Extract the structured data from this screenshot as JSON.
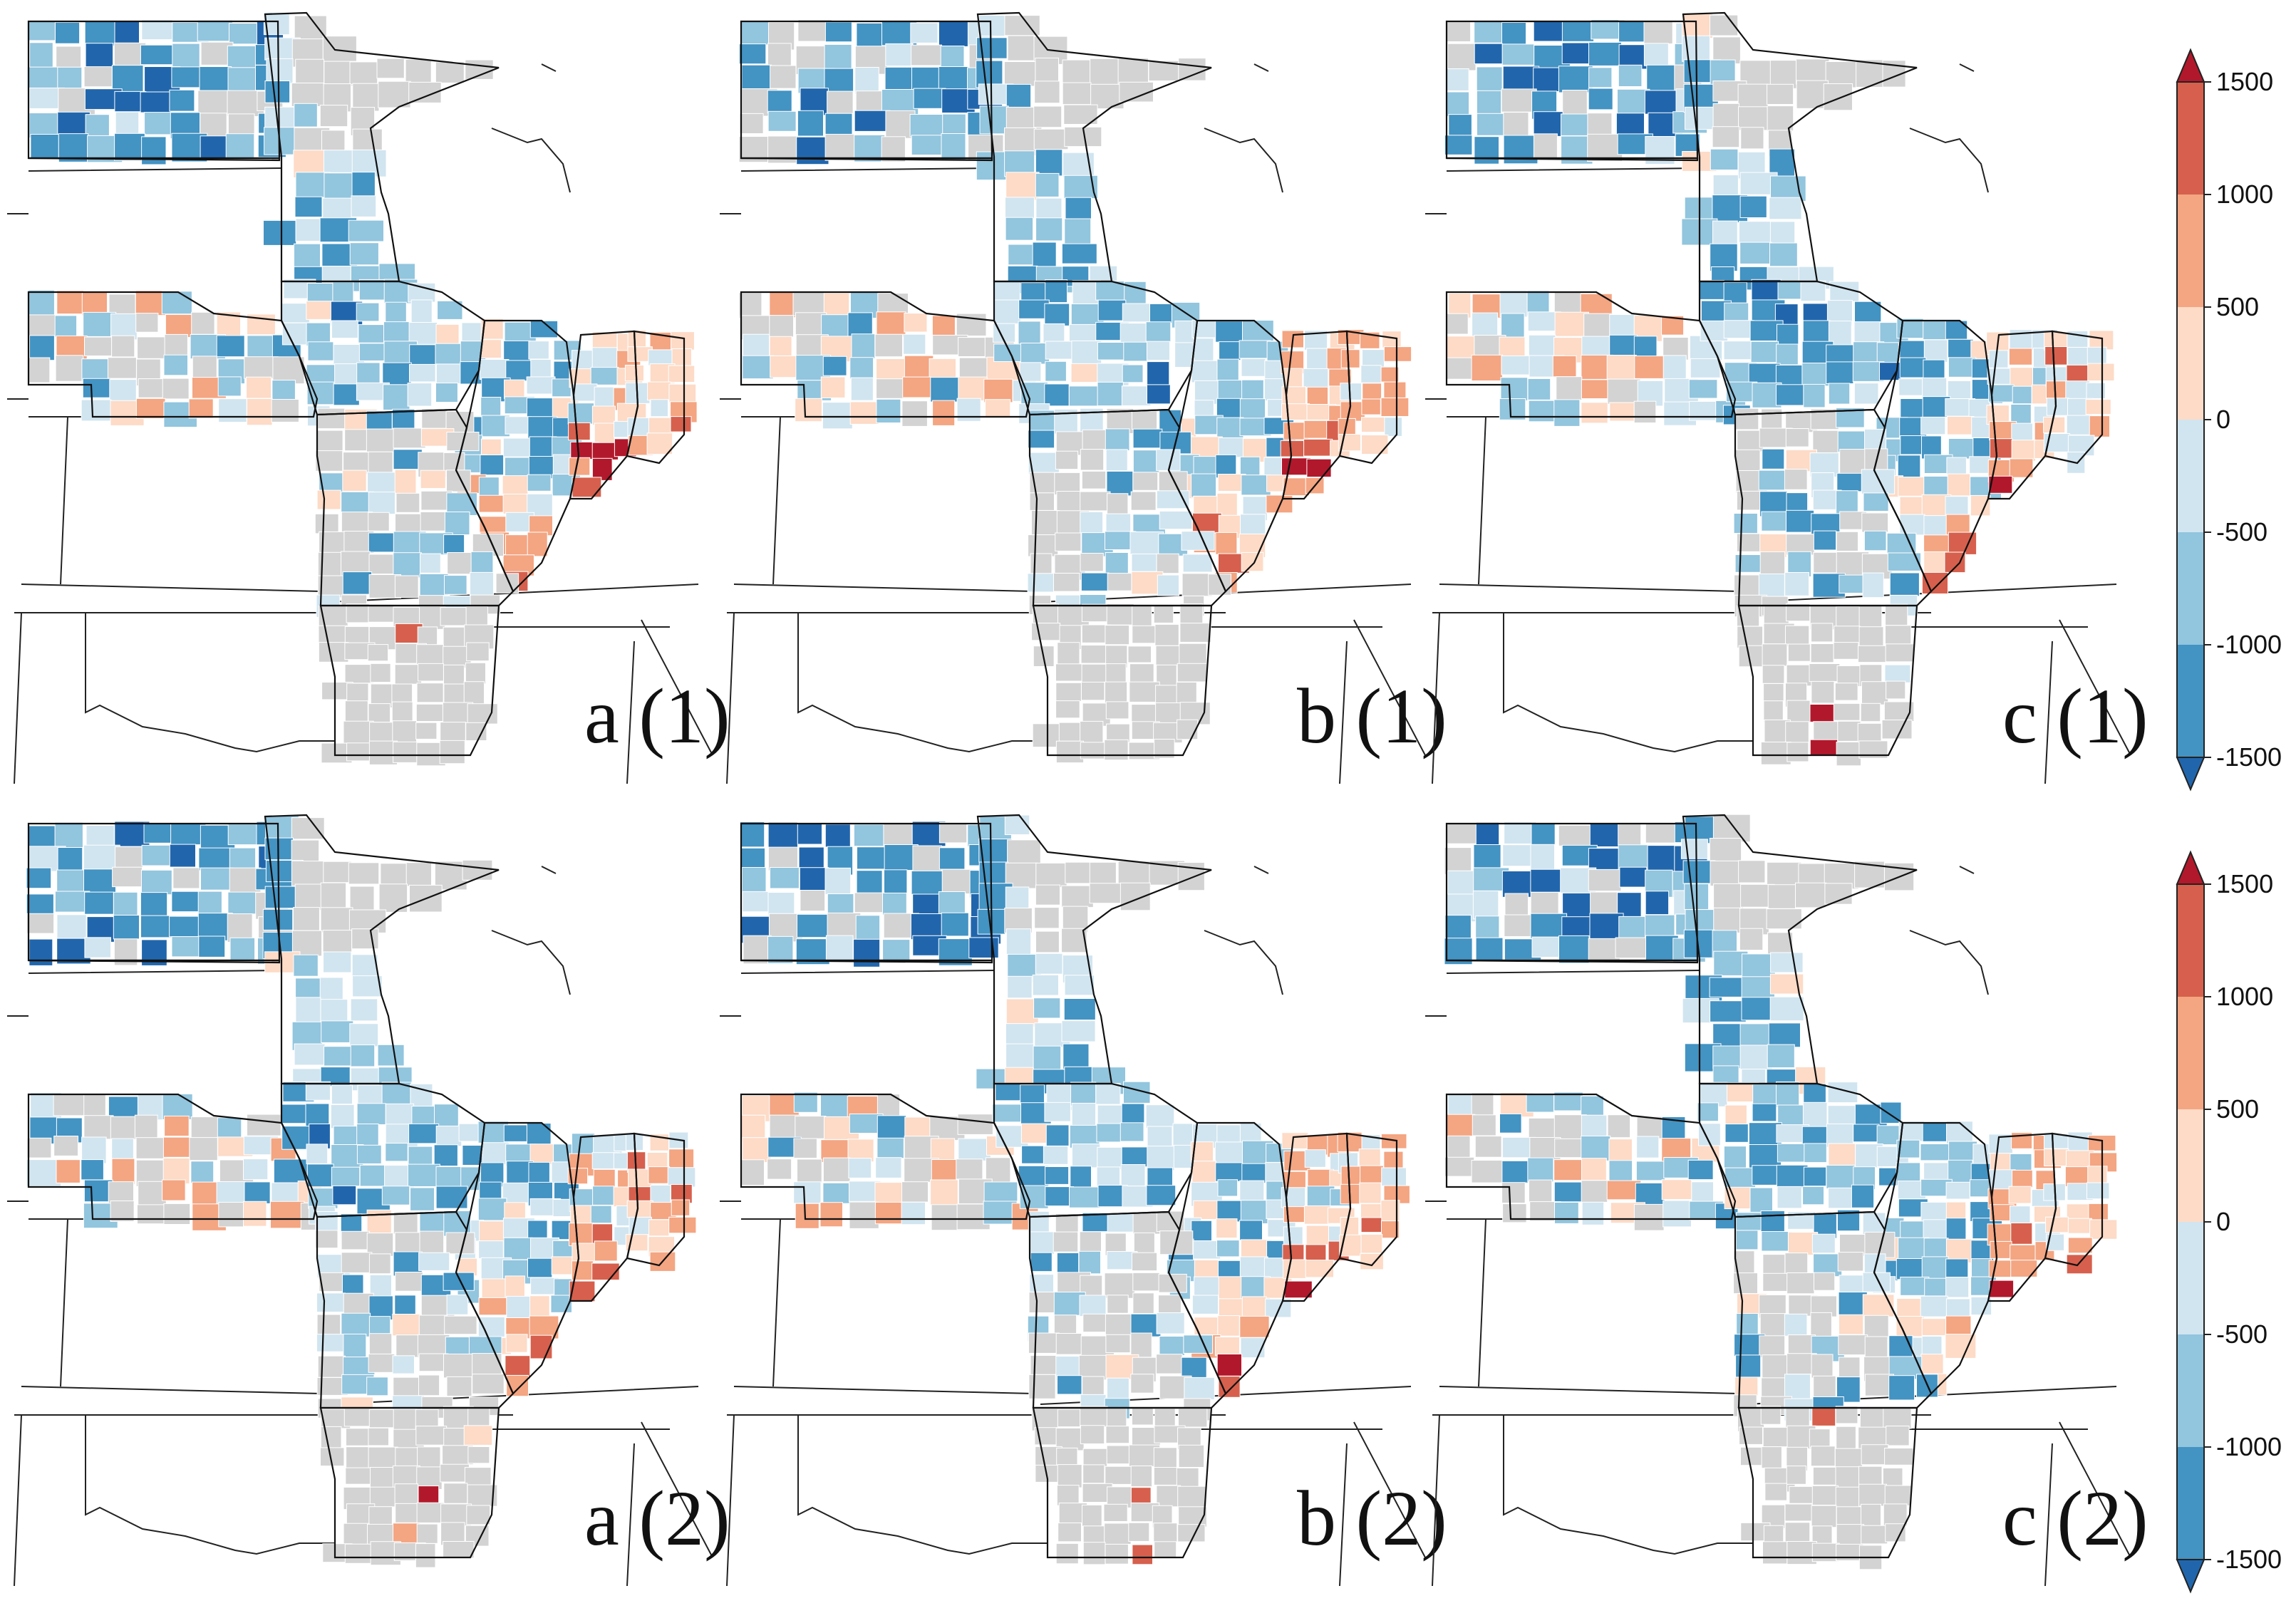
{
  "figure": {
    "panels": [
      {
        "label": "a (1)",
        "seed": 11
      },
      {
        "label": "b (1)",
        "seed": 23
      },
      {
        "label": "c (1)",
        "seed": 37
      },
      {
        "label": "a (2)",
        "seed": 41
      },
      {
        "label": "b (2)",
        "seed": 53
      },
      {
        "label": "c (2)",
        "seed": 67
      }
    ],
    "colorbars": [
      {
        "ticks": [
          "1500",
          "1000",
          "500",
          "0",
          "-500",
          "-1000",
          "-1500"
        ]
      },
      {
        "ticks": [
          "1500",
          "1000",
          "500",
          "0",
          "-500",
          "-1000",
          "-1500"
        ]
      }
    ]
  },
  "legend": {
    "scale_min": -1500,
    "scale_max": 1500,
    "extend": "both",
    "bins": [
      {
        "from": -1500,
        "to": -1000,
        "color": "#2166ac"
      },
      {
        "from": -1000,
        "to": -500,
        "color": "#4393c3"
      },
      {
        "from": -500,
        "to": 0,
        "color": "#92c5de"
      },
      {
        "from": 0,
        "to": 0,
        "color": "#d1e5f0"
      },
      {
        "from": 0,
        "to": 500,
        "color": "#fddbc7"
      },
      {
        "from": 500,
        "to": 1000,
        "color": "#f4a582"
      },
      {
        "from": 1000,
        "to": 1500,
        "color": "#d6604d"
      }
    ],
    "under_color": "#2166ac",
    "over_color": "#b2182b",
    "no_data_color": "#d3d3d3"
  }
}
